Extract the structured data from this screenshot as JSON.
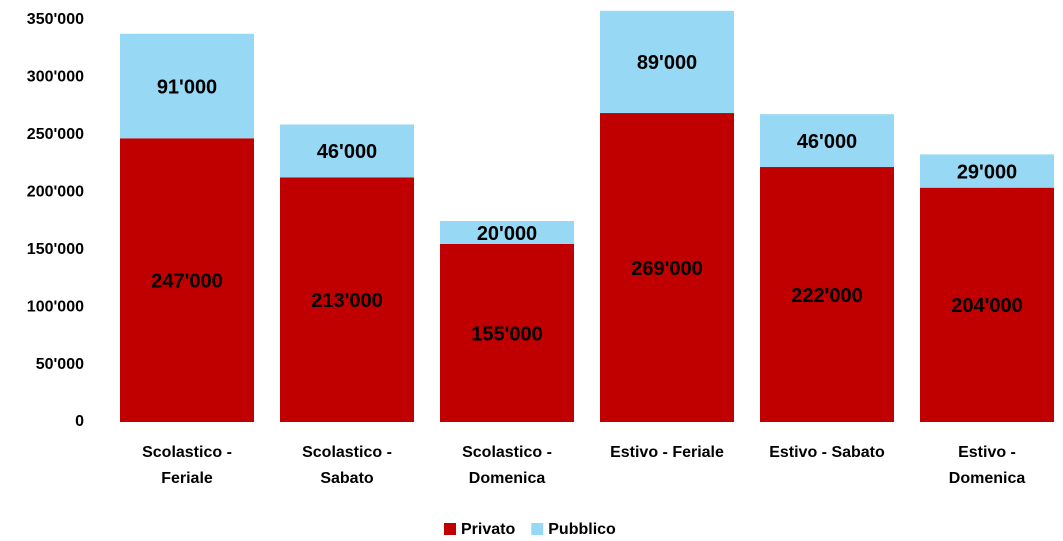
{
  "chart_data": {
    "type": "stacked_bar",
    "categories": [
      "Scolastico - Feriale",
      "Scolastico - Sabato",
      "Scolastico - Domenica",
      "Estivo - Feriale",
      "Estivo - Sabato",
      "Estivo - Domenica"
    ],
    "series": [
      {
        "name": "Privato",
        "color": "#c00000",
        "values": [
          247000,
          213000,
          155000,
          269000,
          222000,
          204000
        ],
        "value_labels": [
          "247'000",
          "213'000",
          "155'000",
          "269'000",
          "222'000",
          "204'000"
        ]
      },
      {
        "name": "Pubblico",
        "color": "#97d8f4",
        "values": [
          91000,
          46000,
          20000,
          89000,
          46000,
          29000
        ],
        "value_labels": [
          "91'000",
          "46'000",
          "20'000",
          "89'000",
          "46'000",
          "29'000"
        ]
      }
    ],
    "ylim": [
      0,
      350000
    ],
    "yticks": [
      0,
      {
        "value": 50000,
        "label": "50'000"
      },
      {
        "value": 100000,
        "label": "100'000"
      },
      {
        "value": 150000,
        "label": "150'000"
      },
      {
        "value": 200000,
        "label": "200'000"
      },
      {
        "value": 250000,
        "label": "250'000"
      },
      {
        "value": 300000,
        "label": "300'000"
      },
      {
        "value": 350000,
        "label": "350'000"
      }
    ],
    "grid": false,
    "legend": "bottom"
  }
}
